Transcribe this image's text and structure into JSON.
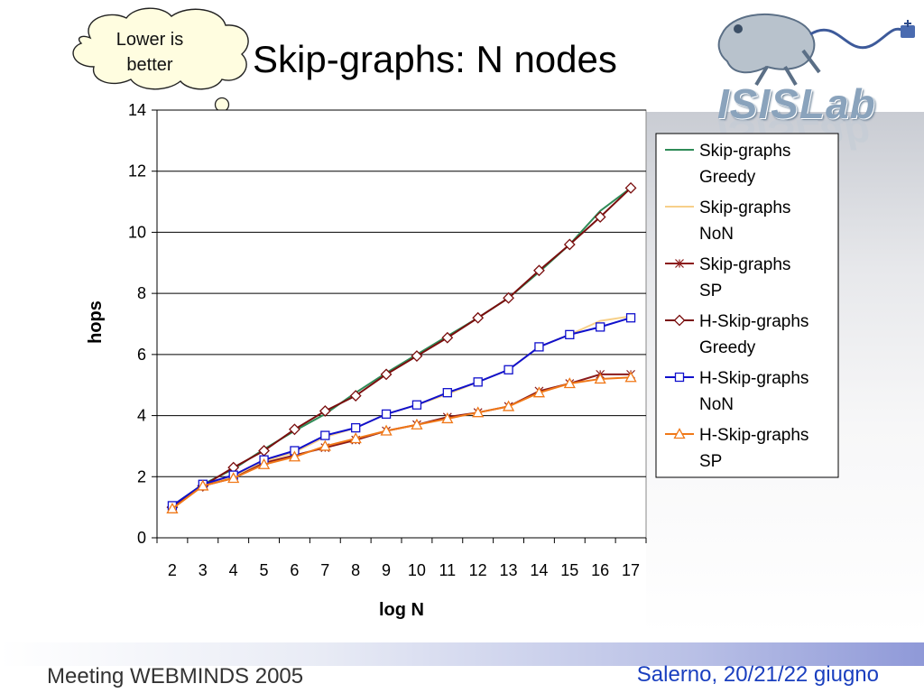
{
  "slide": {
    "title": "Skip-graphs: N nodes",
    "callout": {
      "line1": "Lower is",
      "line2": "better"
    },
    "footer_left": "Meeting WEBMINDS 2005",
    "footer_right": "Salerno, 20/21/22 giugno",
    "logo_text": "ISISLab"
  },
  "chart_data": {
    "type": "line",
    "title": "",
    "xlabel": "log N",
    "ylabel": "hops",
    "categories": [
      "2",
      "3",
      "4",
      "5",
      "6",
      "7",
      "8",
      "9",
      "10",
      "11",
      "12",
      "13",
      "14",
      "15",
      "16",
      "17"
    ],
    "ylim": [
      0,
      14
    ],
    "yticks": [
      0,
      2,
      4,
      6,
      8,
      10,
      12,
      14
    ],
    "grid": "horizontal",
    "legend_position": "right",
    "series": [
      {
        "name": "Skip-graphs Greedy",
        "color": "#2e8b57",
        "marker": "none",
        "values": [
          1.05,
          1.75,
          2.25,
          2.9,
          3.5,
          4.05,
          4.75,
          5.4,
          6.0,
          6.6,
          7.2,
          7.85,
          8.7,
          9.6,
          10.7,
          11.45
        ]
      },
      {
        "name": "Skip-graphs NoN",
        "color": "#f7d08a",
        "marker": "none",
        "values": [
          1.0,
          1.7,
          2.0,
          2.5,
          2.8,
          3.3,
          3.6,
          4.05,
          4.35,
          4.7,
          5.1,
          5.5,
          6.25,
          6.65,
          7.1,
          7.25
        ]
      },
      {
        "name": "Skip-graphs SP",
        "color": "#8b1a1a",
        "marker": "star",
        "values": [
          1.0,
          1.7,
          1.95,
          2.45,
          2.7,
          2.95,
          3.2,
          3.5,
          3.7,
          3.95,
          4.1,
          4.3,
          4.8,
          5.05,
          5.35,
          5.35
        ]
      },
      {
        "name": "H-Skip-graphs Greedy",
        "color": "#7a0d0d",
        "marker": "diamond",
        "values": [
          1.0,
          1.7,
          2.3,
          2.85,
          3.55,
          4.15,
          4.65,
          5.35,
          5.95,
          6.55,
          7.2,
          7.85,
          8.75,
          9.6,
          10.5,
          11.45
        ]
      },
      {
        "name": "H-Skip-graphs NoN",
        "color": "#1010cc",
        "marker": "square",
        "values": [
          1.05,
          1.75,
          2.05,
          2.55,
          2.85,
          3.35,
          3.6,
          4.05,
          4.35,
          4.75,
          5.1,
          5.5,
          6.25,
          6.65,
          6.9,
          7.2
        ]
      },
      {
        "name": "H-Skip-graphs SP",
        "color": "#f07818",
        "marker": "triangle",
        "values": [
          0.95,
          1.7,
          1.95,
          2.4,
          2.65,
          3.0,
          3.25,
          3.5,
          3.7,
          3.9,
          4.1,
          4.3,
          4.75,
          5.05,
          5.2,
          5.25
        ]
      }
    ]
  }
}
